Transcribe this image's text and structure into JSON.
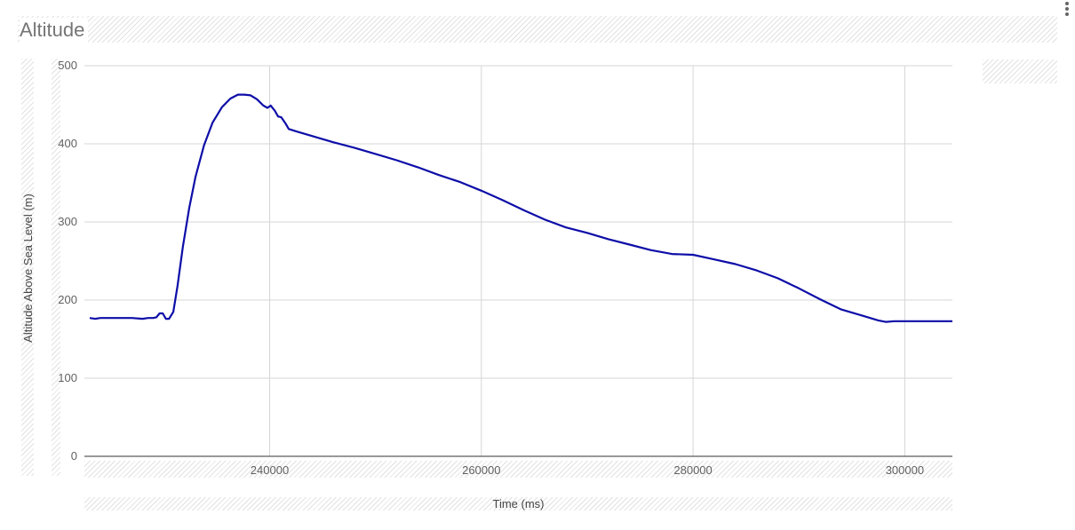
{
  "header": {
    "title": "Altitude",
    "menu_icon": "more-vert-icon"
  },
  "chart_data": {
    "type": "line",
    "title": "Altitude",
    "xlabel": "Time (ms)",
    "ylabel": "Altitude Above Sea Level (m)",
    "xlim": [
      222500,
      304500
    ],
    "ylim": [
      0,
      500
    ],
    "xticks": [
      240000,
      260000,
      280000,
      300000
    ],
    "yticks": [
      0,
      100,
      200,
      300,
      400,
      500
    ],
    "grid": true,
    "legend": "none",
    "line_color": "#0d0da8",
    "series": [
      {
        "x": [
          223000,
          223500,
          224000,
          225000,
          226000,
          227000,
          228000,
          228500,
          229000,
          229300,
          229600,
          229900,
          230200,
          230500,
          230900,
          231300,
          231800,
          232400,
          233000,
          233800,
          234600,
          235500,
          236300,
          237000,
          237600,
          238200,
          238800,
          239400,
          239800,
          240100,
          240500,
          240800,
          241100,
          241500,
          241800,
          242500,
          244000,
          246000,
          248000,
          250000,
          252000,
          254000,
          256000,
          258000,
          260000,
          262000,
          264000,
          266000,
          268000,
          270000,
          272000,
          274000,
          276000,
          278000,
          280000,
          282000,
          284000,
          286000,
          288000,
          290000,
          292000,
          294000,
          296000,
          297500,
          298200,
          299000,
          300000,
          302000,
          304500
        ],
        "y": [
          177,
          176,
          177,
          177,
          177,
          177,
          176,
          177,
          177,
          178,
          183,
          183,
          176,
          176,
          185,
          218,
          268,
          318,
          358,
          398,
          427,
          447,
          458,
          463,
          463,
          462,
          457,
          449,
          446,
          449,
          442,
          435,
          434,
          426,
          419,
          416,
          410,
          402,
          395,
          387,
          379,
          370,
          360,
          351,
          340,
          328,
          315,
          303,
          293,
          286,
          278,
          271,
          264,
          259,
          258,
          252,
          246,
          238,
          228,
          215,
          201,
          188,
          180,
          174,
          172,
          173,
          173,
          173,
          173
        ]
      }
    ]
  }
}
